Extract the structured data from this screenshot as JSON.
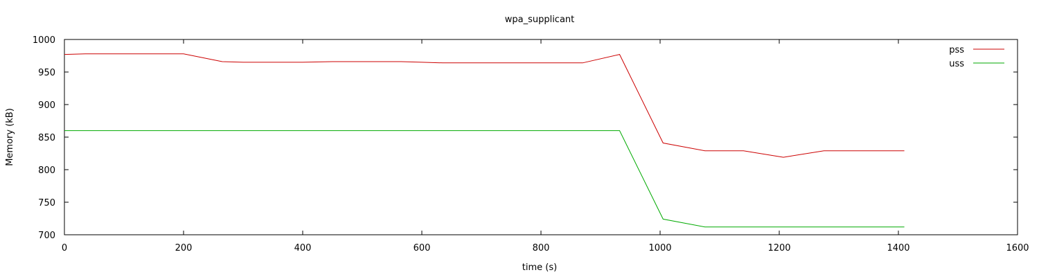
{
  "chart_data": {
    "type": "line",
    "title": "wpa_supplicant",
    "xlabel": "time (s)",
    "ylabel": "Memory (kB)",
    "xlim": [
      0,
      1600
    ],
    "ylim": [
      700,
      1000
    ],
    "xticks": [
      0,
      200,
      400,
      600,
      800,
      1000,
      1200,
      1400,
      1600
    ],
    "yticks": [
      700,
      750,
      800,
      850,
      900,
      950,
      1000
    ],
    "grid": false,
    "legend_position": "top-right",
    "series": [
      {
        "name": "pss",
        "color": "#cc0000",
        "points": [
          [
            0,
            977
          ],
          [
            35,
            978
          ],
          [
            100,
            978
          ],
          [
            200,
            978
          ],
          [
            265,
            966
          ],
          [
            300,
            965
          ],
          [
            400,
            965
          ],
          [
            450,
            966
          ],
          [
            500,
            966
          ],
          [
            565,
            966
          ],
          [
            600,
            965
          ],
          [
            635,
            964
          ],
          [
            700,
            964
          ],
          [
            800,
            964
          ],
          [
            870,
            964
          ],
          [
            932,
            977
          ],
          [
            1005,
            841
          ],
          [
            1075,
            829
          ],
          [
            1140,
            829
          ],
          [
            1207,
            819
          ],
          [
            1275,
            829
          ],
          [
            1340,
            829
          ],
          [
            1410,
            829
          ]
        ]
      },
      {
        "name": "uss",
        "color": "#00aa00",
        "points": [
          [
            0,
            860
          ],
          [
            100,
            860
          ],
          [
            200,
            860
          ],
          [
            300,
            860
          ],
          [
            400,
            860
          ],
          [
            500,
            860
          ],
          [
            600,
            860
          ],
          [
            700,
            860
          ],
          [
            800,
            860
          ],
          [
            932,
            860
          ],
          [
            1005,
            724
          ],
          [
            1075,
            712
          ],
          [
            1140,
            712
          ],
          [
            1207,
            712
          ],
          [
            1275,
            712
          ],
          [
            1340,
            712
          ],
          [
            1410,
            712
          ]
        ]
      }
    ]
  }
}
